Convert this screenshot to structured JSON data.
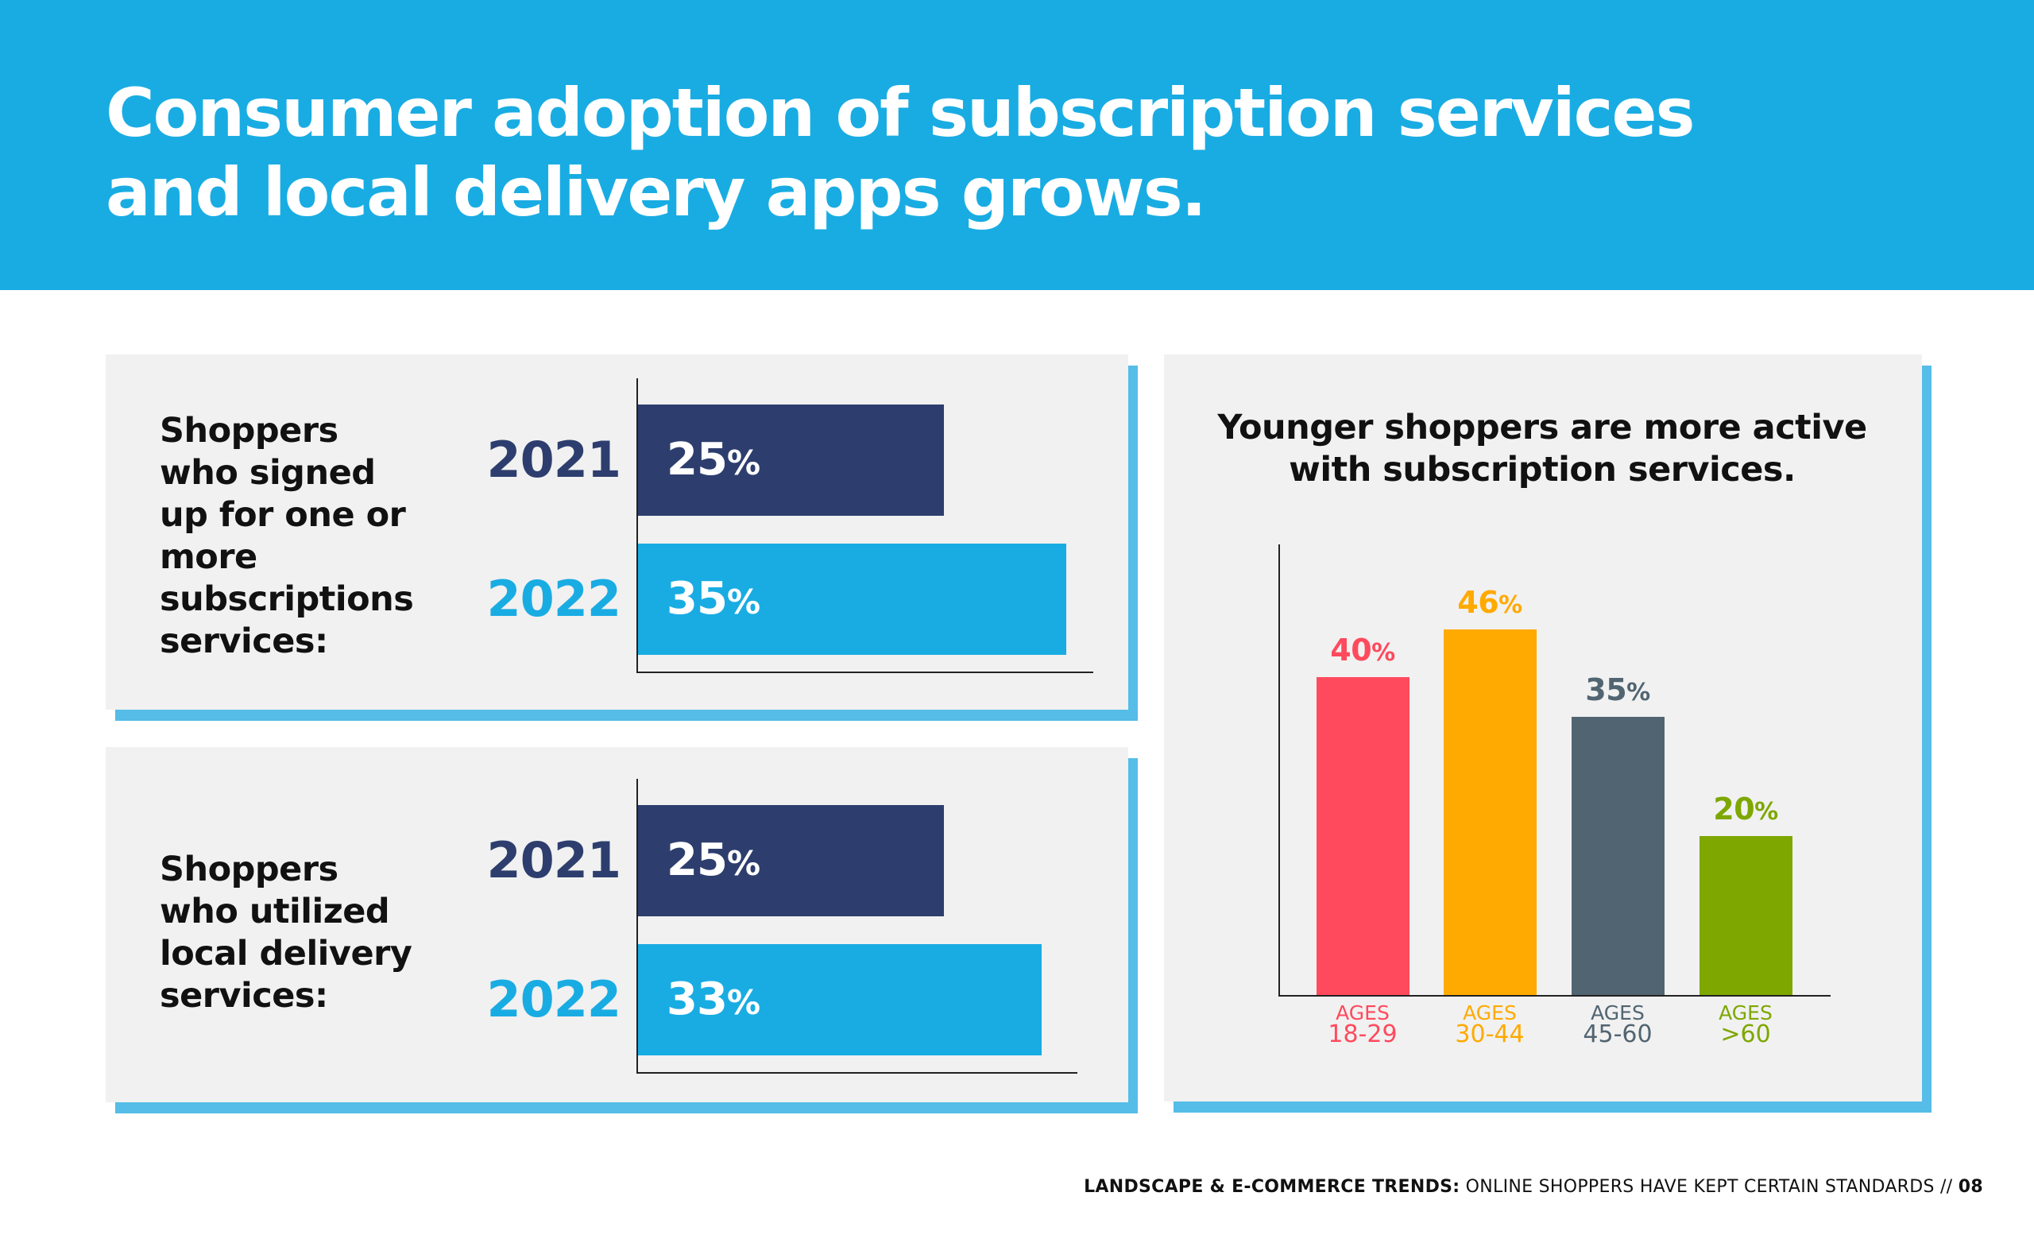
{
  "header": {
    "title_line1": "Consumer adoption of subscription services",
    "title_line2": "and local delivery apps grows."
  },
  "panels": [
    {
      "label": "Shoppers\nwho signed\nup for one or\nmore\nsubscriptions\nservices:"
    },
    {
      "label": "Shoppers\nwho utilized\nlocal delivery\nservices:"
    }
  ],
  "chart_data": [
    {
      "type": "bar",
      "orientation": "horizontal",
      "categories": [
        "2021",
        "2022"
      ],
      "values": [
        25,
        35
      ],
      "value_labels": [
        "25",
        "35"
      ],
      "unit": "%",
      "colors": [
        "#2d3e6e",
        "#19ace3"
      ],
      "xlim": [
        0,
        50
      ]
    },
    {
      "type": "bar",
      "orientation": "horizontal",
      "categories": [
        "2021",
        "2022"
      ],
      "values": [
        25,
        33
      ],
      "value_labels": [
        "25",
        "33"
      ],
      "unit": "%",
      "colors": [
        "#2d3e6e",
        "#19ace3"
      ],
      "xlim": [
        0,
        50
      ]
    },
    {
      "type": "bar",
      "orientation": "vertical",
      "title_line1": "Younger shoppers are more active",
      "title_line2": "with subscription services.",
      "categories": [
        "AGES 18-29",
        "AGES 30-44",
        "AGES 45-60",
        "AGES >60"
      ],
      "category_parts": [
        {
          "prefix": "AGES",
          "range": "18-29"
        },
        {
          "prefix": "AGES",
          "range": "30-44"
        },
        {
          "prefix": "AGES",
          "range": "45-60"
        },
        {
          "prefix": "AGES",
          "range": ">60"
        }
      ],
      "values": [
        40,
        46,
        35,
        20
      ],
      "value_labels": [
        "40",
        "46",
        "35",
        "20"
      ],
      "unit": "%",
      "colors": [
        "#ff4a5d",
        "#ffaa00",
        "#516471",
        "#7ea700"
      ],
      "ylim": [
        0,
        58
      ]
    }
  ],
  "footer": {
    "bold": "LANDSCAPE & E-COMMERCE TRENDS:",
    "text": " ONLINE SHOPPERS HAVE KEPT CERTAIN STANDARDS //",
    "page": "08"
  }
}
